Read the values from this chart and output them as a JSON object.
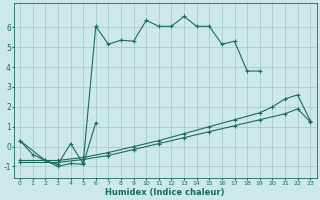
{
  "xlabel": "Humidex (Indice chaleur)",
  "background_color": "#cce8e8",
  "grid_color": "#aacccc",
  "line_color": "#1a6b5a",
  "xlim": [
    -0.5,
    23.5
  ],
  "ylim": [
    -1.6,
    7.2
  ],
  "xticks": [
    0,
    1,
    2,
    3,
    4,
    5,
    6,
    7,
    8,
    9,
    10,
    11,
    12,
    13,
    14,
    15,
    16,
    17,
    18,
    19,
    20,
    21,
    22,
    23
  ],
  "yticks": [
    -1,
    0,
    1,
    2,
    3,
    4,
    5,
    6
  ],
  "series": [
    {
      "x": [
        0,
        1,
        2,
        3,
        4,
        5,
        6,
        7,
        8,
        9,
        10,
        11,
        12,
        13,
        14,
        15,
        16,
        17,
        18,
        19
      ],
      "y": [
        0.3,
        -0.4,
        -0.7,
        -0.9,
        0.15,
        -0.85,
        6.05,
        5.15,
        5.35,
        5.3,
        6.35,
        6.05,
        6.05,
        6.55,
        6.05,
        6.05,
        5.15,
        5.3,
        3.8,
        3.8
      ]
    },
    {
      "x": [
        0,
        2,
        3,
        4,
        5,
        6
      ],
      "y": [
        0.3,
        -0.7,
        -1.0,
        -0.85,
        -0.9,
        1.2
      ]
    },
    {
      "x": [
        0,
        3,
        5,
        7,
        9,
        11,
        13,
        15,
        17,
        19,
        20,
        21,
        22,
        23
      ],
      "y": [
        -0.7,
        -0.7,
        -0.55,
        -0.3,
        0.0,
        0.3,
        0.65,
        1.0,
        1.35,
        1.7,
        2.0,
        2.4,
        2.6,
        1.3
      ]
    },
    {
      "x": [
        0,
        3,
        5,
        7,
        9,
        11,
        13,
        15,
        17,
        19,
        21,
        22,
        23
      ],
      "y": [
        -0.8,
        -0.8,
        -0.65,
        -0.45,
        -0.15,
        0.15,
        0.45,
        0.75,
        1.05,
        1.35,
        1.65,
        1.9,
        1.25
      ]
    }
  ]
}
